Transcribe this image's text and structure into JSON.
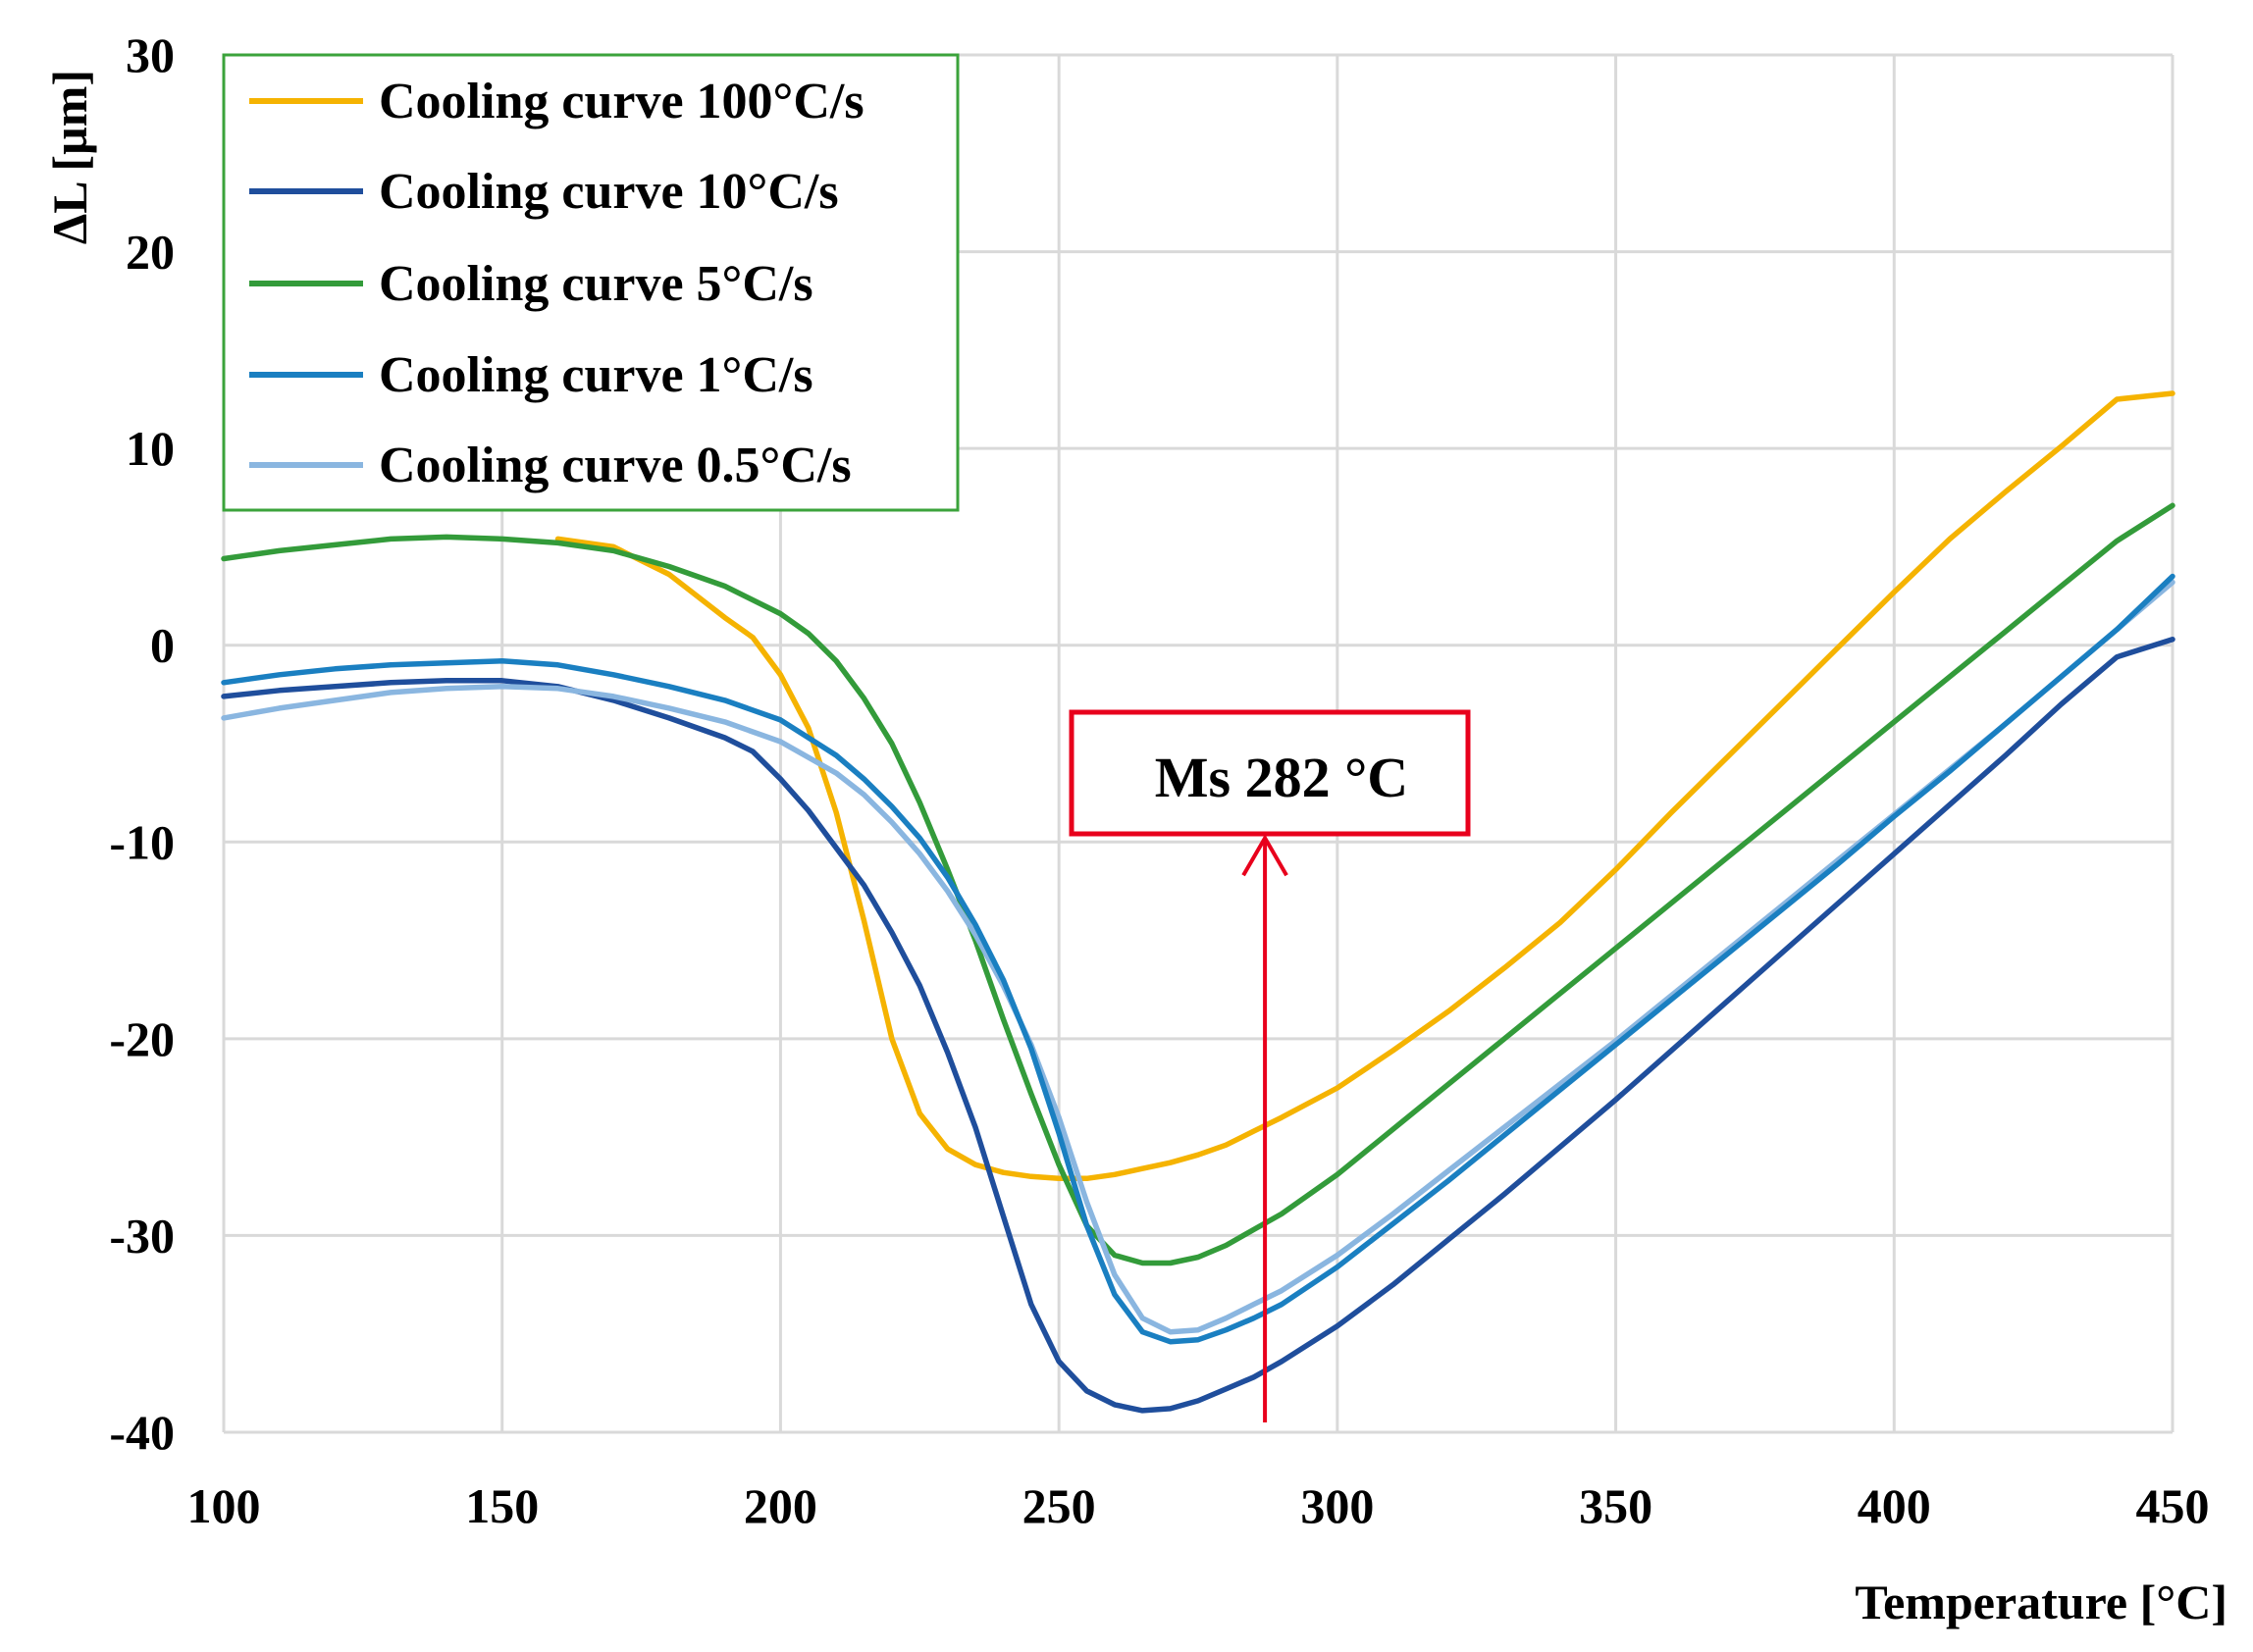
{
  "chart_data": {
    "type": "line",
    "title": "",
    "xlabel": "Temperature [°C]",
    "ylabel": "ΔL [µm]",
    "xlim": [
      100,
      450
    ],
    "ylim": [
      -40,
      30
    ],
    "xticks": [
      100,
      150,
      200,
      250,
      300,
      350,
      400,
      450
    ],
    "yticks": [
      -40,
      -30,
      -20,
      -10,
      0,
      10,
      20,
      30
    ],
    "x_tick_labels": [
      "100",
      "150",
      "200",
      "250",
      "300",
      "350",
      "400",
      "450"
    ],
    "y_tick_labels": [
      "-40",
      "-30",
      "-20",
      "-10",
      "0",
      "10",
      "20",
      "30"
    ],
    "grid": true,
    "legend_position": "top-left",
    "series": [
      {
        "name": "Cooling curve 100°C/s",
        "color": "#F5B301",
        "x": [
          160,
          170,
          180,
          190,
          195,
          200,
          205,
          210,
          215,
          220,
          225,
          230,
          235,
          240,
          245,
          250,
          255,
          260,
          265,
          270,
          275,
          280,
          285,
          290,
          300,
          310,
          320,
          330,
          340,
          350,
          360,
          370,
          380,
          390,
          400,
          410,
          420,
          430,
          440,
          450
        ],
        "y": [
          5.4,
          5.0,
          3.6,
          1.4,
          0.4,
          -1.5,
          -4.2,
          -8.5,
          -14.0,
          -20.0,
          -23.8,
          -25.6,
          -26.4,
          -26.8,
          -27.0,
          -27.1,
          -27.1,
          -26.9,
          -26.6,
          -26.3,
          -25.9,
          -25.4,
          -24.7,
          -24.0,
          -22.5,
          -20.6,
          -18.6,
          -16.4,
          -14.1,
          -11.4,
          -8.5,
          -5.7,
          -2.9,
          -0.1,
          2.7,
          5.4,
          7.8,
          10.1,
          12.5,
          12.8
        ]
      },
      {
        "name": "Cooling curve 10°C/s",
        "color": "#1F4E9C",
        "x": [
          100,
          110,
          120,
          130,
          140,
          150,
          160,
          170,
          180,
          190,
          195,
          200,
          205,
          210,
          215,
          220,
          225,
          230,
          235,
          240,
          245,
          250,
          255,
          260,
          265,
          270,
          275,
          280,
          285,
          290,
          300,
          310,
          320,
          330,
          340,
          350,
          360,
          370,
          380,
          390,
          400,
          410,
          420,
          430,
          440,
          450
        ],
        "y": [
          -2.6,
          -2.3,
          -2.1,
          -1.9,
          -1.8,
          -1.8,
          -2.1,
          -2.8,
          -3.7,
          -4.7,
          -5.4,
          -6.8,
          -8.4,
          -10.3,
          -12.2,
          -14.6,
          -17.3,
          -20.7,
          -24.5,
          -29.0,
          -33.5,
          -36.4,
          -37.9,
          -38.6,
          -38.9,
          -38.8,
          -38.4,
          -37.8,
          -37.2,
          -36.4,
          -34.6,
          -32.5,
          -30.2,
          -27.9,
          -25.5,
          -23.1,
          -20.6,
          -18.1,
          -15.6,
          -13.1,
          -10.6,
          -8.1,
          -5.6,
          -3.0,
          -0.6,
          0.3
        ]
      },
      {
        "name": "Cooling curve 5°C/s",
        "color": "#339B3A",
        "x": [
          100,
          110,
          120,
          130,
          140,
          150,
          160,
          170,
          180,
          190,
          200,
          205,
          210,
          215,
          220,
          225,
          230,
          235,
          240,
          245,
          250,
          255,
          260,
          265,
          270,
          275,
          280,
          285,
          290,
          300,
          310,
          320,
          330,
          340,
          350,
          360,
          370,
          380,
          390,
          400,
          410,
          420,
          430,
          440,
          450
        ],
        "y": [
          4.4,
          4.8,
          5.1,
          5.4,
          5.5,
          5.4,
          5.2,
          4.8,
          4.0,
          3.0,
          1.6,
          0.6,
          -0.8,
          -2.7,
          -5.0,
          -8.0,
          -11.4,
          -15.0,
          -19.0,
          -22.8,
          -26.4,
          -29.5,
          -31.0,
          -31.4,
          -31.4,
          -31.1,
          -30.5,
          -29.7,
          -28.9,
          -26.9,
          -24.6,
          -22.3,
          -20.0,
          -17.7,
          -15.4,
          -13.1,
          -10.8,
          -8.5,
          -6.2,
          -3.9,
          -1.6,
          0.7,
          3.0,
          5.3,
          7.1
        ]
      },
      {
        "name": "Cooling curve 1°C/s",
        "color": "#1A7FC1",
        "x": [
          100,
          110,
          120,
          130,
          140,
          150,
          160,
          170,
          180,
          190,
          200,
          210,
          215,
          220,
          225,
          230,
          235,
          240,
          245,
          250,
          255,
          260,
          265,
          270,
          275,
          280,
          285,
          290,
          300,
          310,
          320,
          330,
          340,
          350,
          360,
          370,
          380,
          390,
          400,
          410,
          420,
          430,
          440,
          450
        ],
        "y": [
          -1.9,
          -1.5,
          -1.2,
          -1.0,
          -0.9,
          -0.8,
          -1.0,
          -1.5,
          -2.1,
          -2.8,
          -3.8,
          -5.6,
          -6.8,
          -8.2,
          -9.8,
          -11.8,
          -14.2,
          -17.0,
          -20.5,
          -24.8,
          -29.5,
          -33.0,
          -34.9,
          -35.4,
          -35.3,
          -34.8,
          -34.2,
          -33.5,
          -31.6,
          -29.4,
          -27.2,
          -24.9,
          -22.6,
          -20.3,
          -18.0,
          -15.7,
          -13.4,
          -11.1,
          -8.7,
          -6.4,
          -4.0,
          -1.6,
          0.8,
          3.5
        ]
      },
      {
        "name": "Cooling curve 0.5°C/s",
        "color": "#8AB6E0",
        "x": [
          100,
          110,
          120,
          130,
          140,
          150,
          160,
          170,
          180,
          190,
          200,
          210,
          215,
          220,
          225,
          230,
          235,
          240,
          245,
          250,
          255,
          260,
          265,
          270,
          275,
          280,
          285,
          290,
          300,
          310,
          320,
          330,
          340,
          350,
          360,
          370,
          380,
          390,
          400,
          410,
          420,
          430,
          440,
          450
        ],
        "y": [
          -3.7,
          -3.2,
          -2.8,
          -2.4,
          -2.2,
          -2.1,
          -2.2,
          -2.6,
          -3.2,
          -3.9,
          -4.9,
          -6.5,
          -7.6,
          -9.0,
          -10.6,
          -12.5,
          -14.7,
          -17.3,
          -20.3,
          -24.0,
          -28.3,
          -32.0,
          -34.2,
          -34.9,
          -34.8,
          -34.2,
          -33.5,
          -32.8,
          -31.0,
          -28.9,
          -26.7,
          -24.5,
          -22.3,
          -20.1,
          -17.8,
          -15.5,
          -13.2,
          -10.9,
          -8.6,
          -6.3,
          -4.0,
          -1.6,
          0.8,
          3.2
        ]
      }
    ],
    "annotations": [
      {
        "text": "Ms 282 °C",
        "arrow_x": 287,
        "arrow_y_from": -39.5,
        "arrow_y_to": -9.8,
        "color": "#E8001C"
      }
    ]
  }
}
